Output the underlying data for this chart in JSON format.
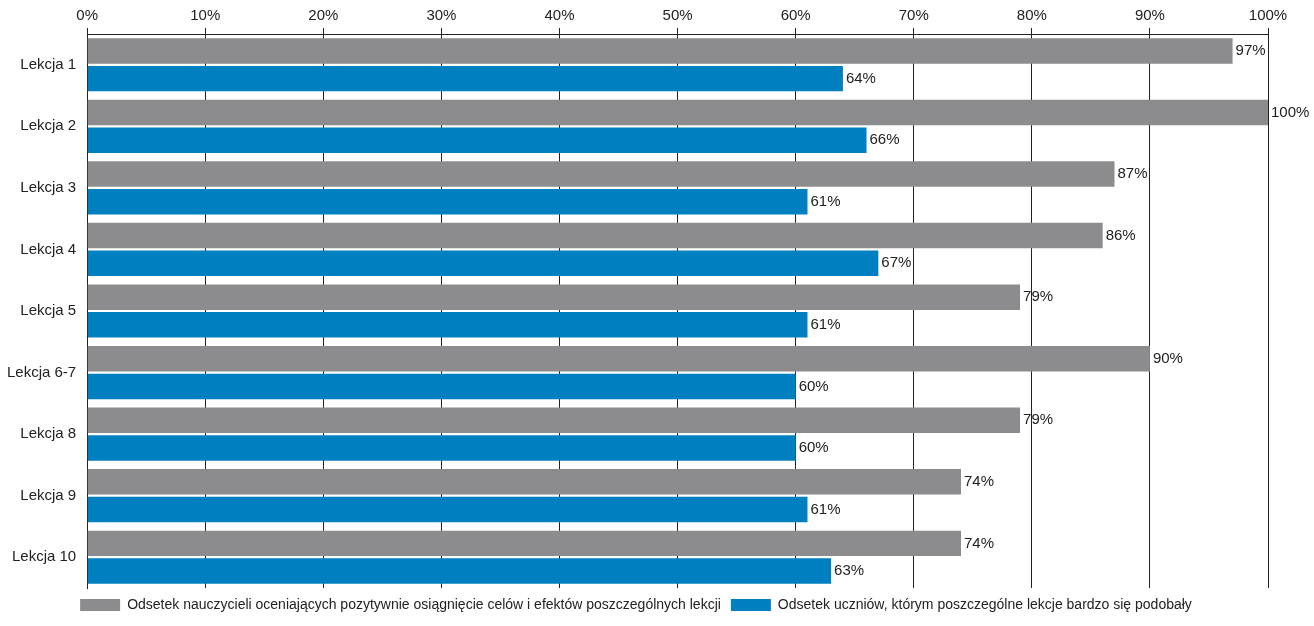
{
  "chart_data": {
    "type": "bar",
    "orientation": "horizontal",
    "categories": [
      "Lekcja 1",
      "Lekcja 2",
      "Lekcja 3",
      "Lekcja 4",
      "Lekcja 5",
      "Lekcja 6-7",
      "Lekcja 8",
      "Lekcja 9",
      "Lekcja 10"
    ],
    "series": [
      {
        "name": "Odsetek nauczycieli oceniających pozytywnie osiągnięcie celów i efektów poszczególnych lekcji",
        "color": "#8c8c8e",
        "values": [
          97,
          100,
          87,
          86,
          79,
          90,
          79,
          74,
          74
        ],
        "value_labels": [
          "97%",
          "100%",
          "87%",
          "86%",
          "79%",
          "90%",
          "79%",
          "74%",
          "74%"
        ]
      },
      {
        "name": "Odsetek uczniów, którym poszczególne lekcje bardzo się podobały",
        "color": "#0080c0",
        "values": [
          64,
          66,
          61,
          67,
          61,
          60,
          60,
          61,
          63
        ],
        "value_labels": [
          "64%",
          "66%",
          "61%",
          "67%",
          "61%",
          "60%",
          "60%",
          "61%",
          "63%"
        ]
      }
    ],
    "xlim": [
      0,
      100
    ],
    "xticks": [
      {
        "value": 0,
        "label": "0%"
      },
      {
        "value": 10,
        "label": "10%"
      },
      {
        "value": 20,
        "label": "20%"
      },
      {
        "value": 30,
        "label": "30%"
      },
      {
        "value": 40,
        "label": "40%"
      },
      {
        "value": 50,
        "label": "50%"
      },
      {
        "value": 60,
        "label": "60%"
      },
      {
        "value": 70,
        "label": "70%"
      },
      {
        "value": 80,
        "label": "80%"
      },
      {
        "value": 90,
        "label": "90%"
      },
      {
        "value": 100,
        "label": "100%"
      }
    ],
    "grid": "x",
    "legend": "bottom"
  }
}
